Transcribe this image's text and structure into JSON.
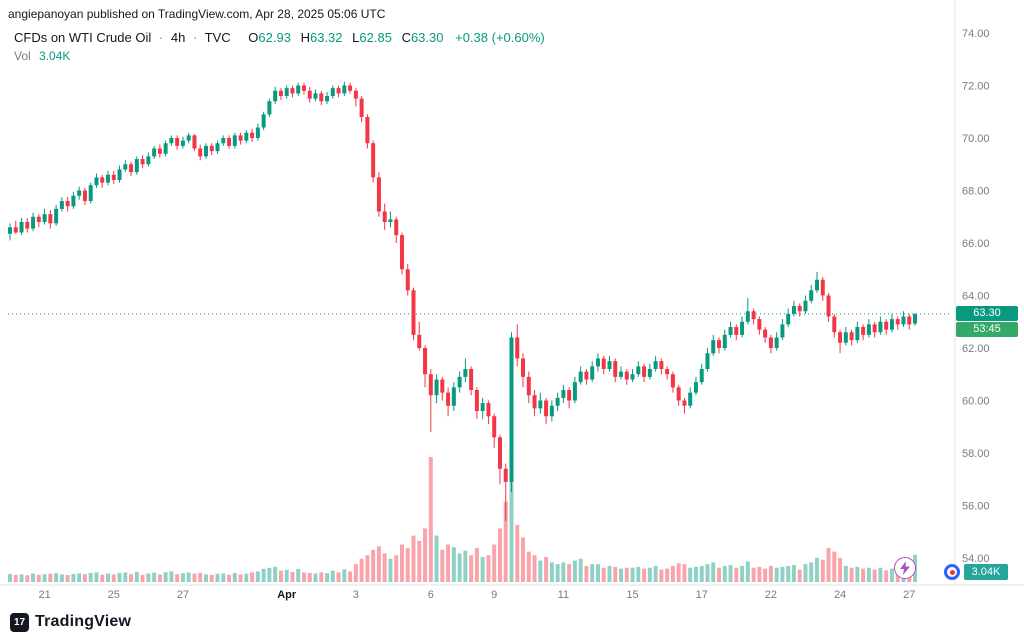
{
  "attribution": "angiepanoyan published on TradingView.com, Apr 28, 2025 05:06 UTC",
  "legend": {
    "title": "CFDs on WTI Crude Oil",
    "separator": "·",
    "interval": "4h",
    "exchange": "TVC",
    "o_label": "O",
    "o_value": "62.93",
    "h_label": "H",
    "h_value": "63.32",
    "l_label": "L",
    "l_value": "62.85",
    "c_label": "C",
    "c_value": "63.30",
    "change": "+0.38 (+0.60%)",
    "vol_label": "Vol",
    "vol_value": "3.04K"
  },
  "last_price": {
    "price": 63.3,
    "label": "63.30",
    "countdown": "53:45"
  },
  "volume_badge": "3.04K",
  "footer": {
    "brand": "TradingView",
    "mark": "17"
  },
  "colors": {
    "up": "#089981",
    "down": "#f23645",
    "up_vol": "rgba(8,153,129,0.45)",
    "down_vol": "rgba(242,54,69,0.45)",
    "axis_text": "#787b86",
    "text": "#131722",
    "grid": "#e0e3eb",
    "price_badge_bg": "#089981",
    "countdown_badge_bg": "#33a867",
    "volume_badge_bg": "#26a69a"
  },
  "chart_data": {
    "type": "candlestick",
    "title": "CFDs on WTI Crude Oil · 4h · TVC",
    "price_range": [
      54,
      74
    ],
    "grid": "off",
    "legend_position": "top-left",
    "price_ticks": [
      {
        "label": "74.00",
        "value": 74
      },
      {
        "label": "72.00",
        "value": 72
      },
      {
        "label": "70.00",
        "value": 70
      },
      {
        "label": "68.00",
        "value": 68
      },
      {
        "label": "66.00",
        "value": 66
      },
      {
        "label": "64.00",
        "value": 64
      },
      {
        "label": "62.00",
        "value": 62
      },
      {
        "label": "60.00",
        "value": 60
      },
      {
        "label": "58.00",
        "value": 58
      },
      {
        "label": "56.00",
        "value": 56
      },
      {
        "label": "54.00",
        "value": 54
      }
    ],
    "time_labels": [
      {
        "label": "21",
        "i": 6
      },
      {
        "label": "25",
        "i": 18
      },
      {
        "label": "27",
        "i": 30
      },
      {
        "label": "Apr",
        "i": 48,
        "bold": true
      },
      {
        "label": "3",
        "i": 60
      },
      {
        "label": "6",
        "i": 73
      },
      {
        "label": "9",
        "i": 84
      },
      {
        "label": "11",
        "i": 96
      },
      {
        "label": "15",
        "i": 108
      },
      {
        "label": "17",
        "i": 120
      },
      {
        "label": "22",
        "i": 132
      },
      {
        "label": "24",
        "i": 144
      },
      {
        "label": "27",
        "i": 156
      }
    ],
    "candles": [
      [
        66.35,
        66.75,
        66.1,
        66.6,
        900
      ],
      [
        66.6,
        66.85,
        66.35,
        66.4,
        800
      ],
      [
        66.4,
        66.95,
        66.3,
        66.8,
        850
      ],
      [
        66.8,
        66.95,
        66.4,
        66.55,
        750
      ],
      [
        66.55,
        67.15,
        66.45,
        67.0,
        950
      ],
      [
        67.0,
        67.1,
        66.6,
        66.8,
        820
      ],
      [
        66.8,
        67.3,
        66.7,
        67.1,
        880
      ],
      [
        67.1,
        67.25,
        66.55,
        66.75,
        930
      ],
      [
        66.75,
        67.45,
        66.65,
        67.3,
        1000
      ],
      [
        67.3,
        67.75,
        67.2,
        67.6,
        860
      ],
      [
        67.6,
        67.75,
        67.2,
        67.4,
        780
      ],
      [
        67.4,
        67.95,
        67.3,
        67.8,
        900
      ],
      [
        67.8,
        68.15,
        67.65,
        68.0,
        960
      ],
      [
        68.0,
        68.1,
        67.45,
        67.6,
        880
      ],
      [
        67.6,
        68.3,
        67.5,
        68.2,
        1000
      ],
      [
        68.2,
        68.65,
        68.1,
        68.5,
        1080
      ],
      [
        68.5,
        68.6,
        68.1,
        68.3,
        820
      ],
      [
        68.3,
        68.75,
        68.2,
        68.6,
        940
      ],
      [
        68.6,
        68.75,
        68.25,
        68.4,
        850
      ],
      [
        68.4,
        68.95,
        68.3,
        68.8,
        1020
      ],
      [
        68.8,
        69.15,
        68.7,
        69.0,
        1080
      ],
      [
        69.0,
        69.1,
        68.55,
        68.7,
        880
      ],
      [
        68.7,
        69.3,
        68.6,
        69.2,
        1140
      ],
      [
        69.2,
        69.35,
        68.85,
        69.0,
        820
      ],
      [
        69.0,
        69.45,
        68.9,
        69.3,
        960
      ],
      [
        69.3,
        69.7,
        69.2,
        69.6,
        1050
      ],
      [
        69.6,
        69.75,
        69.25,
        69.4,
        850
      ],
      [
        69.4,
        69.9,
        69.3,
        69.8,
        1100
      ],
      [
        69.8,
        70.1,
        69.7,
        70.0,
        1190
      ],
      [
        70.0,
        70.1,
        69.55,
        69.7,
        880
      ],
      [
        69.7,
        70.05,
        69.6,
        69.9,
        990
      ],
      [
        69.9,
        70.2,
        69.8,
        70.1,
        1080
      ],
      [
        70.1,
        70.15,
        69.5,
        69.6,
        940
      ],
      [
        69.6,
        69.75,
        69.15,
        69.3,
        1020
      ],
      [
        69.3,
        69.8,
        69.2,
        69.7,
        850
      ],
      [
        69.7,
        69.8,
        69.35,
        69.5,
        800
      ],
      [
        69.5,
        69.9,
        69.4,
        69.8,
        910
      ],
      [
        69.8,
        70.1,
        69.7,
        70.0,
        960
      ],
      [
        70.0,
        70.1,
        69.6,
        69.7,
        820
      ],
      [
        69.7,
        70.2,
        69.6,
        70.1,
        1020
      ],
      [
        70.1,
        70.2,
        69.75,
        69.9,
        850
      ],
      [
        69.9,
        70.3,
        69.8,
        70.2,
        930
      ],
      [
        70.2,
        70.35,
        69.85,
        70.0,
        1080
      ],
      [
        70.0,
        70.55,
        69.9,
        70.4,
        1190
      ],
      [
        70.4,
        71.0,
        70.3,
        70.9,
        1470
      ],
      [
        70.9,
        71.5,
        70.8,
        71.4,
        1590
      ],
      [
        71.4,
        71.95,
        71.3,
        71.8,
        1700
      ],
      [
        71.8,
        71.9,
        71.45,
        71.6,
        1270
      ],
      [
        71.6,
        72.0,
        71.5,
        71.9,
        1360
      ],
      [
        71.9,
        72.0,
        71.55,
        71.7,
        1130
      ],
      [
        71.7,
        72.1,
        71.6,
        72.0,
        1470
      ],
      [
        72.0,
        72.1,
        71.65,
        71.8,
        1080
      ],
      [
        71.8,
        71.95,
        71.35,
        71.5,
        1020
      ],
      [
        71.5,
        71.85,
        71.4,
        71.7,
        960
      ],
      [
        71.7,
        71.8,
        71.25,
        71.4,
        1080
      ],
      [
        71.4,
        71.75,
        71.3,
        71.6,
        990
      ],
      [
        71.6,
        72.0,
        71.5,
        71.9,
        1270
      ],
      [
        71.9,
        72.0,
        71.55,
        71.7,
        1080
      ],
      [
        71.7,
        72.15,
        71.6,
        72.0,
        1420
      ],
      [
        72.0,
        72.1,
        71.7,
        71.8,
        1190
      ],
      [
        71.8,
        71.9,
        71.2,
        71.5,
        2000
      ],
      [
        71.5,
        71.6,
        70.6,
        70.8,
        2600
      ],
      [
        70.8,
        70.9,
        69.6,
        69.8,
        3000
      ],
      [
        69.8,
        69.9,
        68.3,
        68.5,
        3600
      ],
      [
        68.5,
        68.7,
        67.0,
        67.2,
        4000
      ],
      [
        67.2,
        67.5,
        66.5,
        66.8,
        3200
      ],
      [
        66.8,
        67.2,
        66.6,
        66.9,
        2600
      ],
      [
        66.9,
        67.0,
        66.0,
        66.3,
        3000
      ],
      [
        66.3,
        66.4,
        64.8,
        65.0,
        4200
      ],
      [
        65.0,
        65.2,
        64.0,
        64.2,
        3800
      ],
      [
        64.2,
        64.3,
        62.3,
        62.5,
        5200
      ],
      [
        62.5,
        63.0,
        61.9,
        62.0,
        4600
      ],
      [
        62.0,
        62.1,
        60.5,
        61.0,
        6000
      ],
      [
        61.0,
        61.2,
        58.8,
        60.2,
        14000
      ],
      [
        60.2,
        61.0,
        59.9,
        60.8,
        5200
      ],
      [
        60.8,
        60.9,
        60.0,
        60.3,
        3600
      ],
      [
        60.3,
        60.5,
        59.4,
        59.8,
        4200
      ],
      [
        59.8,
        60.7,
        59.6,
        60.5,
        3900
      ],
      [
        60.5,
        61.1,
        60.3,
        60.9,
        3200
      ],
      [
        60.9,
        61.6,
        60.7,
        61.2,
        3500
      ],
      [
        61.2,
        61.3,
        60.2,
        60.4,
        3000
      ],
      [
        60.4,
        60.5,
        59.3,
        59.6,
        3800
      ],
      [
        59.6,
        60.1,
        59.3,
        59.9,
        2800
      ],
      [
        59.9,
        60.0,
        59.1,
        59.4,
        3000
      ],
      [
        59.4,
        59.5,
        58.2,
        58.6,
        4200
      ],
      [
        58.6,
        58.7,
        56.8,
        57.4,
        6000
      ],
      [
        57.4,
        57.6,
        55.4,
        56.9,
        9000
      ],
      [
        56.9,
        62.6,
        56.5,
        62.4,
        12000
      ],
      [
        62.4,
        62.9,
        61.3,
        61.6,
        6400
      ],
      [
        61.6,
        61.8,
        60.5,
        60.9,
        5000
      ],
      [
        60.9,
        61.1,
        59.9,
        60.2,
        3400
      ],
      [
        60.2,
        60.4,
        59.4,
        59.7,
        3000
      ],
      [
        59.7,
        60.3,
        59.5,
        60.0,
        2400
      ],
      [
        60.0,
        60.1,
        59.1,
        59.4,
        2800
      ],
      [
        59.4,
        60.0,
        59.2,
        59.8,
        2200
      ],
      [
        59.8,
        60.3,
        59.6,
        60.1,
        2000
      ],
      [
        60.1,
        60.6,
        59.9,
        60.4,
        2200
      ],
      [
        60.4,
        60.5,
        59.7,
        60.0,
        2000
      ],
      [
        60.0,
        60.9,
        59.9,
        60.7,
        2400
      ],
      [
        60.7,
        61.3,
        60.6,
        61.1,
        2600
      ],
      [
        61.1,
        61.2,
        60.6,
        60.8,
        1800
      ],
      [
        60.8,
        61.5,
        60.7,
        61.3,
        2000
      ],
      [
        61.3,
        61.8,
        61.1,
        61.6,
        2000
      ],
      [
        61.6,
        61.7,
        61.0,
        61.2,
        1600
      ],
      [
        61.2,
        61.7,
        61.1,
        61.5,
        1800
      ],
      [
        61.5,
        61.6,
        60.7,
        60.9,
        1700
      ],
      [
        60.9,
        61.3,
        60.8,
        61.1,
        1500
      ],
      [
        61.1,
        61.2,
        60.6,
        60.8,
        1600
      ],
      [
        60.8,
        61.2,
        60.7,
        61.0,
        1600
      ],
      [
        61.0,
        61.5,
        60.9,
        61.3,
        1700
      ],
      [
        61.3,
        61.4,
        60.7,
        60.9,
        1500
      ],
      [
        60.9,
        61.4,
        60.8,
        61.2,
        1600
      ],
      [
        61.2,
        61.7,
        61.1,
        61.5,
        1800
      ],
      [
        61.5,
        61.6,
        61.0,
        61.2,
        1400
      ],
      [
        61.2,
        61.3,
        60.8,
        61.0,
        1500
      ],
      [
        61.0,
        61.1,
        60.3,
        60.5,
        1800
      ],
      [
        60.5,
        60.6,
        59.8,
        60.0,
        2100
      ],
      [
        60.0,
        60.1,
        59.5,
        59.8,
        2000
      ],
      [
        59.8,
        60.5,
        59.7,
        60.3,
        1600
      ],
      [
        60.3,
        60.9,
        60.2,
        60.7,
        1700
      ],
      [
        60.7,
        61.4,
        60.6,
        61.2,
        1800
      ],
      [
        61.2,
        62.0,
        61.1,
        61.8,
        2000
      ],
      [
        61.8,
        62.5,
        61.7,
        62.3,
        2200
      ],
      [
        62.3,
        62.4,
        61.8,
        62.0,
        1600
      ],
      [
        62.0,
        62.7,
        61.9,
        62.5,
        1800
      ],
      [
        62.5,
        63.0,
        62.4,
        62.8,
        1900
      ],
      [
        62.8,
        62.9,
        62.3,
        62.5,
        1600
      ],
      [
        62.5,
        63.2,
        62.4,
        63.0,
        1800
      ],
      [
        63.0,
        63.9,
        62.9,
        63.4,
        2300
      ],
      [
        63.4,
        63.5,
        62.9,
        63.1,
        1600
      ],
      [
        63.1,
        63.2,
        62.5,
        62.7,
        1700
      ],
      [
        62.7,
        62.8,
        62.2,
        62.4,
        1500
      ],
      [
        62.4,
        62.5,
        61.8,
        62.0,
        1800
      ],
      [
        62.0,
        62.6,
        61.9,
        62.4,
        1600
      ],
      [
        62.4,
        63.1,
        62.3,
        62.9,
        1700
      ],
      [
        62.9,
        63.5,
        62.8,
        63.3,
        1800
      ],
      [
        63.3,
        63.8,
        63.2,
        63.6,
        1900
      ],
      [
        63.6,
        63.7,
        63.2,
        63.4,
        1400
      ],
      [
        63.4,
        64.0,
        63.3,
        63.8,
        2000
      ],
      [
        63.8,
        64.4,
        63.7,
        64.2,
        2200
      ],
      [
        64.2,
        64.9,
        64.1,
        64.6,
        2700
      ],
      [
        64.6,
        64.7,
        63.8,
        64.0,
        2500
      ],
      [
        64.0,
        64.1,
        63.0,
        63.2,
        3800
      ],
      [
        63.2,
        63.3,
        62.4,
        62.6,
        3400
      ],
      [
        62.6,
        62.7,
        61.8,
        62.2,
        2700
      ],
      [
        62.2,
        62.8,
        62.1,
        62.6,
        1800
      ],
      [
        62.6,
        62.7,
        62.1,
        62.3,
        1600
      ],
      [
        62.3,
        63.0,
        62.2,
        62.8,
        1700
      ],
      [
        62.8,
        62.9,
        62.3,
        62.5,
        1500
      ],
      [
        62.5,
        63.1,
        62.4,
        62.9,
        1600
      ],
      [
        62.9,
        63.0,
        62.4,
        62.6,
        1400
      ],
      [
        62.6,
        63.2,
        62.5,
        63.0,
        1600
      ],
      [
        63.0,
        63.1,
        62.5,
        62.7,
        1300
      ],
      [
        62.7,
        63.3,
        62.6,
        63.1,
        1500
      ],
      [
        63.1,
        63.2,
        62.7,
        62.9,
        1200
      ],
      [
        62.9,
        63.4,
        62.8,
        63.2,
        1400
      ],
      [
        63.2,
        63.3,
        62.7,
        62.9,
        2000
      ],
      [
        62.93,
        63.32,
        62.85,
        63.3,
        3040
      ]
    ]
  }
}
